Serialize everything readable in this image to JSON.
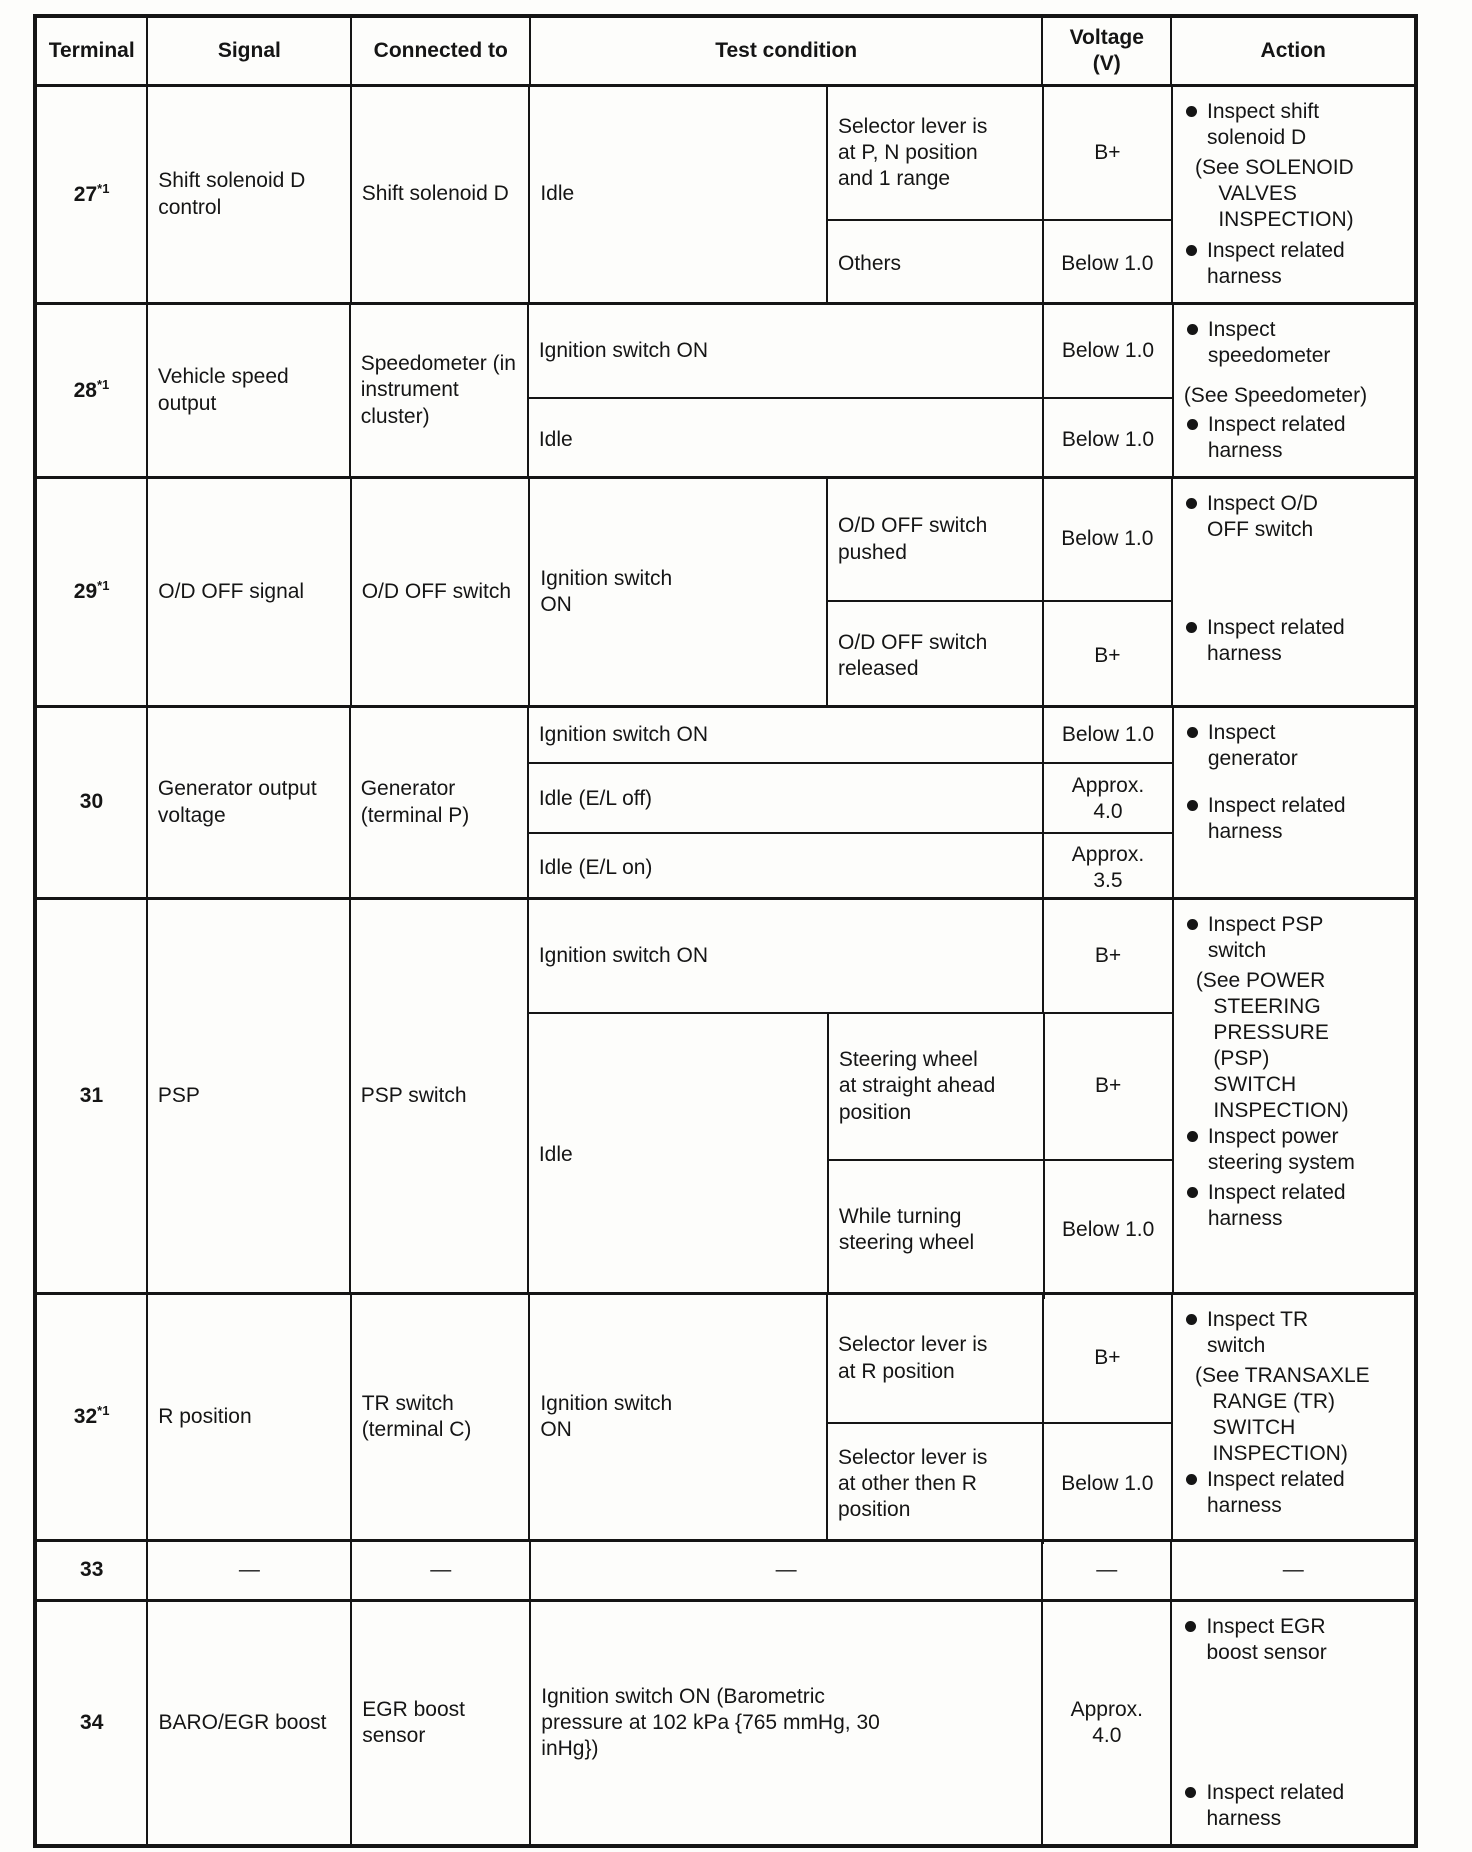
{
  "page": {
    "ink_color": "#151515",
    "paper_color": "#fdfdfb"
  },
  "header": {
    "terminal": "Terminal",
    "signal": "Signal",
    "connected": "Connected to",
    "test": "Test condition",
    "voltage": "Voltage\n(V)",
    "action": "Action"
  },
  "rows": {
    "r27": {
      "term": "27",
      "sup": "*1",
      "signal": "Shift solenoid D\ncontrol",
      "connected": "Shift solenoid D",
      "test_main": "Idle",
      "cond1": "Selector lever is\nat P, N position\nand 1 range",
      "volt1": "B+",
      "cond2": "Others",
      "volt2": "Below 1.0",
      "a1": "Inspect shift\nsolenoid D",
      "a1see": "(See SOLENOID\n    VALVES\n    INSPECTION)",
      "a2": "Inspect related\nharness"
    },
    "r28": {
      "term": "28",
      "sup": "*1",
      "signal": "Vehicle speed\noutput",
      "connected": "Speedometer (in\ninstrument\ncluster)",
      "cond1": "Ignition switch ON",
      "volt1": "Below 1.0",
      "cond2": "Idle",
      "volt2": "Below 1.0",
      "a1": "Inspect\nspeedometer",
      "a1see": "(See Speedometer)",
      "a2": "Inspect related\nharness"
    },
    "r29": {
      "term": "29",
      "sup": "*1",
      "signal": "O/D OFF signal",
      "connected": "O/D OFF switch",
      "test_main": "Ignition switch\nON",
      "cond1": "O/D OFF switch\npushed",
      "volt1": "Below 1.0",
      "cond2": "O/D OFF switch\nreleased",
      "volt2": "B+",
      "a1": "Inspect O/D\nOFF switch",
      "a2": "Inspect related\nharness"
    },
    "r30": {
      "term": "30",
      "signal": "Generator output\nvoltage",
      "connected": "Generator\n(terminal P)",
      "cond1": "Ignition switch ON",
      "volt1": "Below 1.0",
      "cond2": "Idle (E/L off)",
      "volt2": "Approx.\n4.0",
      "cond3": "Idle (E/L on)",
      "volt3": "Approx.\n3.5",
      "a1": "Inspect\ngenerator",
      "a2": "Inspect related\nharness"
    },
    "r31": {
      "term": "31",
      "signal": "PSP",
      "connected": "PSP switch",
      "cond1": "Ignition switch ON",
      "volt1": "B+",
      "test_main": "Idle",
      "cond2": "Steering wheel\nat straight ahead\nposition",
      "volt2": "B+",
      "cond3": "While turning\nsteering wheel",
      "volt3": "Below 1.0",
      "a1": "Inspect PSP\nswitch",
      "a1see": "(See POWER\n   STEERING\n   PRESSURE\n   (PSP)\n   SWITCH\n   INSPECTION)",
      "a2": "Inspect power\nsteering system",
      "a3": "Inspect related\nharness"
    },
    "r32": {
      "term": "32",
      "sup": "*1",
      "signal": "R position",
      "connected": "TR switch\n(terminal C)",
      "test_main": "Ignition switch\nON",
      "cond1": "Selector lever is\nat R position",
      "volt1": "B+",
      "cond2": "Selector lever is\nat other then R\nposition",
      "volt2": "Below 1.0",
      "a1": "Inspect TR\nswitch",
      "a1see": "(See TRANSAXLE\n   RANGE (TR)\n   SWITCH\n   INSPECTION)",
      "a2": "Inspect related\nharness"
    },
    "r33": {
      "term": "33",
      "signal": "—",
      "connected": "—",
      "test": "—",
      "volt": "—",
      "action": "—"
    },
    "r34": {
      "term": "34",
      "signal": "BARO/EGR boost",
      "connected": "EGR boost\nsensor",
      "test": "Ignition switch ON (Barometric\npressure at 102 kPa {765 mmHg, 30\ninHg})",
      "volt": "Approx.\n4.0",
      "a1": "Inspect EGR\nboost sensor",
      "a2": "Inspect related\nharness"
    }
  }
}
